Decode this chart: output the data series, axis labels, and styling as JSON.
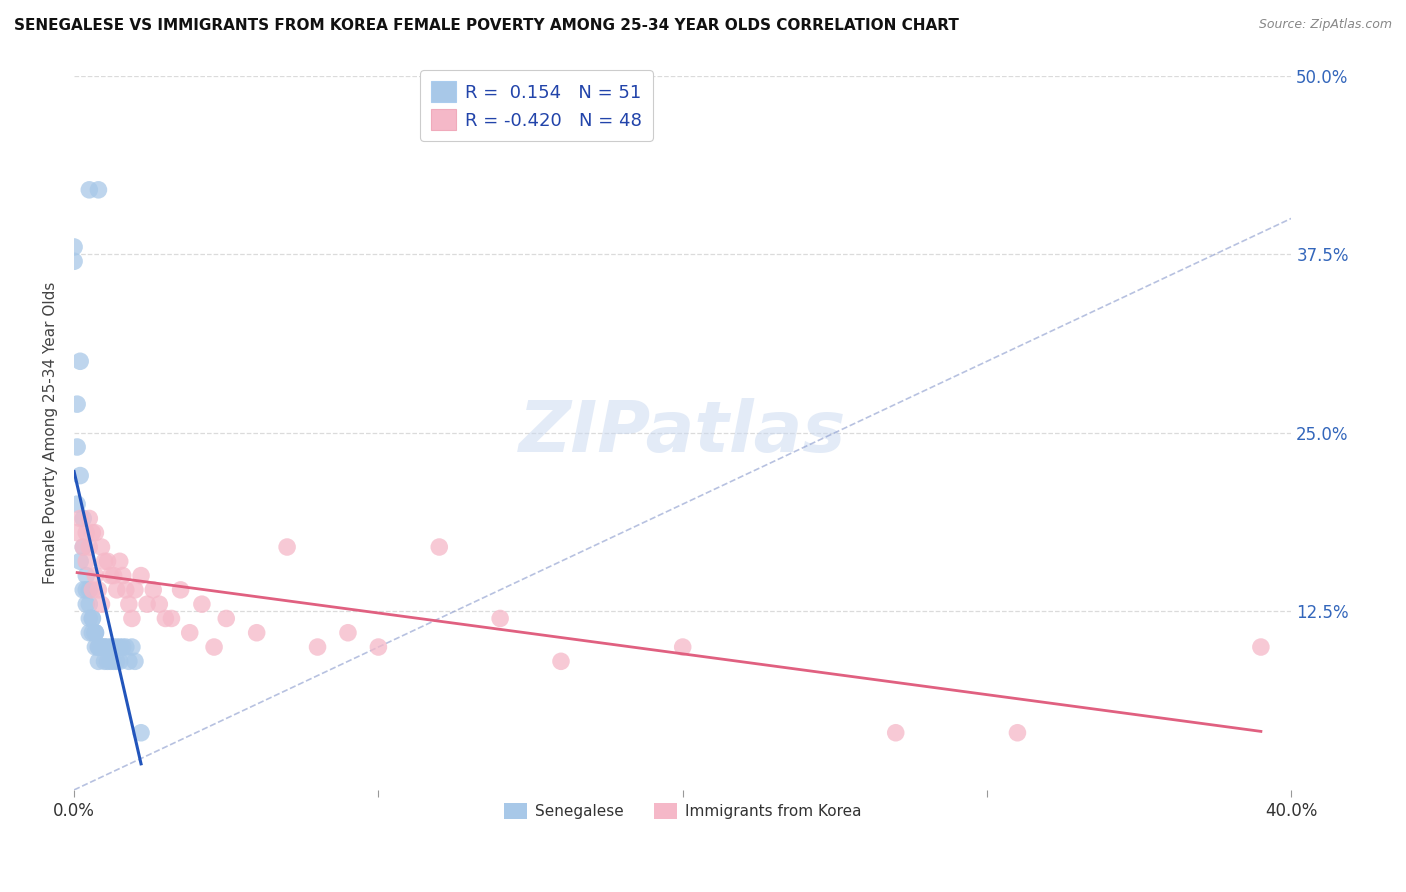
{
  "title": "SENEGALESE VS IMMIGRANTS FROM KOREA FEMALE POVERTY AMONG 25-34 YEAR OLDS CORRELATION CHART",
  "source": "Source: ZipAtlas.com",
  "ylabel": "Female Poverty Among 25-34 Year Olds",
  "xlim": [
    0.0,
    0.4
  ],
  "ylim": [
    0.0,
    0.5
  ],
  "r_senegalese": 0.154,
  "n_senegalese": 51,
  "r_korea": -0.42,
  "n_korea": 48,
  "senegalese_color": "#a8c8e8",
  "korea_color": "#f5b8c8",
  "senegalese_line_color": "#2255bb",
  "korea_line_color": "#e06080",
  "senegalese_x": [
    0.005,
    0.008,
    0.0,
    0.0,
    0.002,
    0.001,
    0.001,
    0.002,
    0.001,
    0.003,
    0.003,
    0.002,
    0.004,
    0.004,
    0.003,
    0.005,
    0.004,
    0.005,
    0.005,
    0.006,
    0.006,
    0.005,
    0.007,
    0.006,
    0.007,
    0.007,
    0.007,
    0.008,
    0.008,
    0.009,
    0.009,
    0.008,
    0.01,
    0.01,
    0.01,
    0.011,
    0.011,
    0.012,
    0.012,
    0.013,
    0.013,
    0.014,
    0.014,
    0.015,
    0.015,
    0.016,
    0.017,
    0.018,
    0.019,
    0.02,
    0.022
  ],
  "senegalese_y": [
    0.42,
    0.42,
    0.38,
    0.37,
    0.3,
    0.27,
    0.24,
    0.22,
    0.2,
    0.19,
    0.17,
    0.16,
    0.15,
    0.14,
    0.14,
    0.14,
    0.13,
    0.13,
    0.12,
    0.12,
    0.12,
    0.11,
    0.11,
    0.11,
    0.11,
    0.11,
    0.1,
    0.1,
    0.1,
    0.1,
    0.1,
    0.09,
    0.1,
    0.1,
    0.09,
    0.1,
    0.09,
    0.1,
    0.09,
    0.1,
    0.09,
    0.1,
    0.09,
    0.1,
    0.09,
    0.1,
    0.1,
    0.09,
    0.1,
    0.09,
    0.04
  ],
  "korea_x": [
    0.001,
    0.002,
    0.003,
    0.004,
    0.004,
    0.005,
    0.005,
    0.006,
    0.006,
    0.007,
    0.007,
    0.008,
    0.009,
    0.009,
    0.01,
    0.011,
    0.012,
    0.013,
    0.014,
    0.015,
    0.016,
    0.017,
    0.018,
    0.019,
    0.02,
    0.022,
    0.024,
    0.026,
    0.028,
    0.03,
    0.032,
    0.035,
    0.038,
    0.042,
    0.046,
    0.05,
    0.06,
    0.07,
    0.08,
    0.09,
    0.1,
    0.12,
    0.14,
    0.16,
    0.2,
    0.27,
    0.31,
    0.39
  ],
  "korea_y": [
    0.18,
    0.19,
    0.17,
    0.18,
    0.16,
    0.19,
    0.17,
    0.18,
    0.14,
    0.18,
    0.15,
    0.14,
    0.17,
    0.13,
    0.16,
    0.16,
    0.15,
    0.15,
    0.14,
    0.16,
    0.15,
    0.14,
    0.13,
    0.12,
    0.14,
    0.15,
    0.13,
    0.14,
    0.13,
    0.12,
    0.12,
    0.14,
    0.11,
    0.13,
    0.1,
    0.12,
    0.11,
    0.17,
    0.1,
    0.11,
    0.1,
    0.17,
    0.12,
    0.09,
    0.1,
    0.04,
    0.04,
    0.1
  ]
}
